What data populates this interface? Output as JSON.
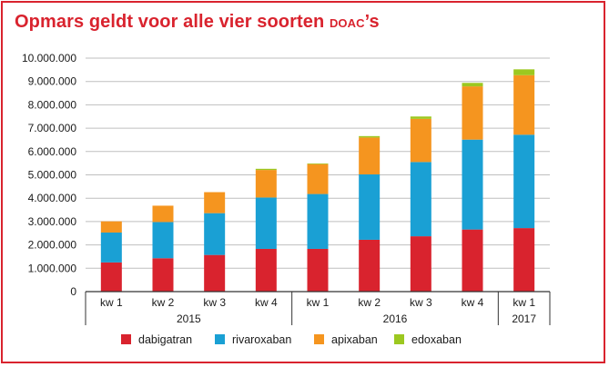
{
  "title": {
    "main": "Opmars geldt voor alle vier soorten ",
    "suffix_smallcaps": "DOAC",
    "suffix_tail": "’s"
  },
  "colors": {
    "accent": "#d9232e",
    "grid": "#bfbfbf",
    "axis": "#333333"
  },
  "chart_data": {
    "type": "bar",
    "stacked": true,
    "title": "Opmars geldt voor alle vier soorten DOAC’s",
    "ylim": [
      0,
      10000000
    ],
    "yticks": [
      0,
      1000000,
      2000000,
      3000000,
      4000000,
      5000000,
      6000000,
      7000000,
      8000000,
      9000000,
      10000000
    ],
    "ytick_labels": [
      "0",
      "1.000.000",
      "2.000.000",
      "3.000.000",
      "4.000.000",
      "5.000.000",
      "6.000.000",
      "7.000.000",
      "8.000.000",
      "9.000.000",
      "10.000.000"
    ],
    "categories": [
      "kw 1",
      "kw 2",
      "kw 3",
      "kw 4",
      "kw 1",
      "kw 2",
      "kw 3",
      "kw 4",
      "kw 1"
    ],
    "groups": [
      {
        "label": "2015",
        "start": 0,
        "end": 3
      },
      {
        "label": "2016",
        "start": 4,
        "end": 7
      },
      {
        "label": "2017",
        "start": 8,
        "end": 8
      }
    ],
    "grid": true,
    "legend_position": "bottom",
    "series": [
      {
        "name": "dabigatran",
        "color": "#d9232e",
        "values": [
          1250000,
          1430000,
          1570000,
          1830000,
          1830000,
          2220000,
          2370000,
          2660000,
          2720000
        ]
      },
      {
        "name": "rivaroxaban",
        "color": "#1aa0d4",
        "values": [
          1280000,
          1550000,
          1790000,
          2200000,
          2350000,
          2800000,
          3180000,
          3850000,
          4000000
        ]
      },
      {
        "name": "apixaban",
        "color": "#f5951f",
        "values": [
          480000,
          700000,
          900000,
          1180000,
          1280000,
          1580000,
          1850000,
          2280000,
          2550000
        ]
      },
      {
        "name": "edoxaban",
        "color": "#9cc820",
        "values": [
          0,
          0,
          0,
          50000,
          30000,
          60000,
          100000,
          150000,
          250000
        ]
      }
    ]
  }
}
